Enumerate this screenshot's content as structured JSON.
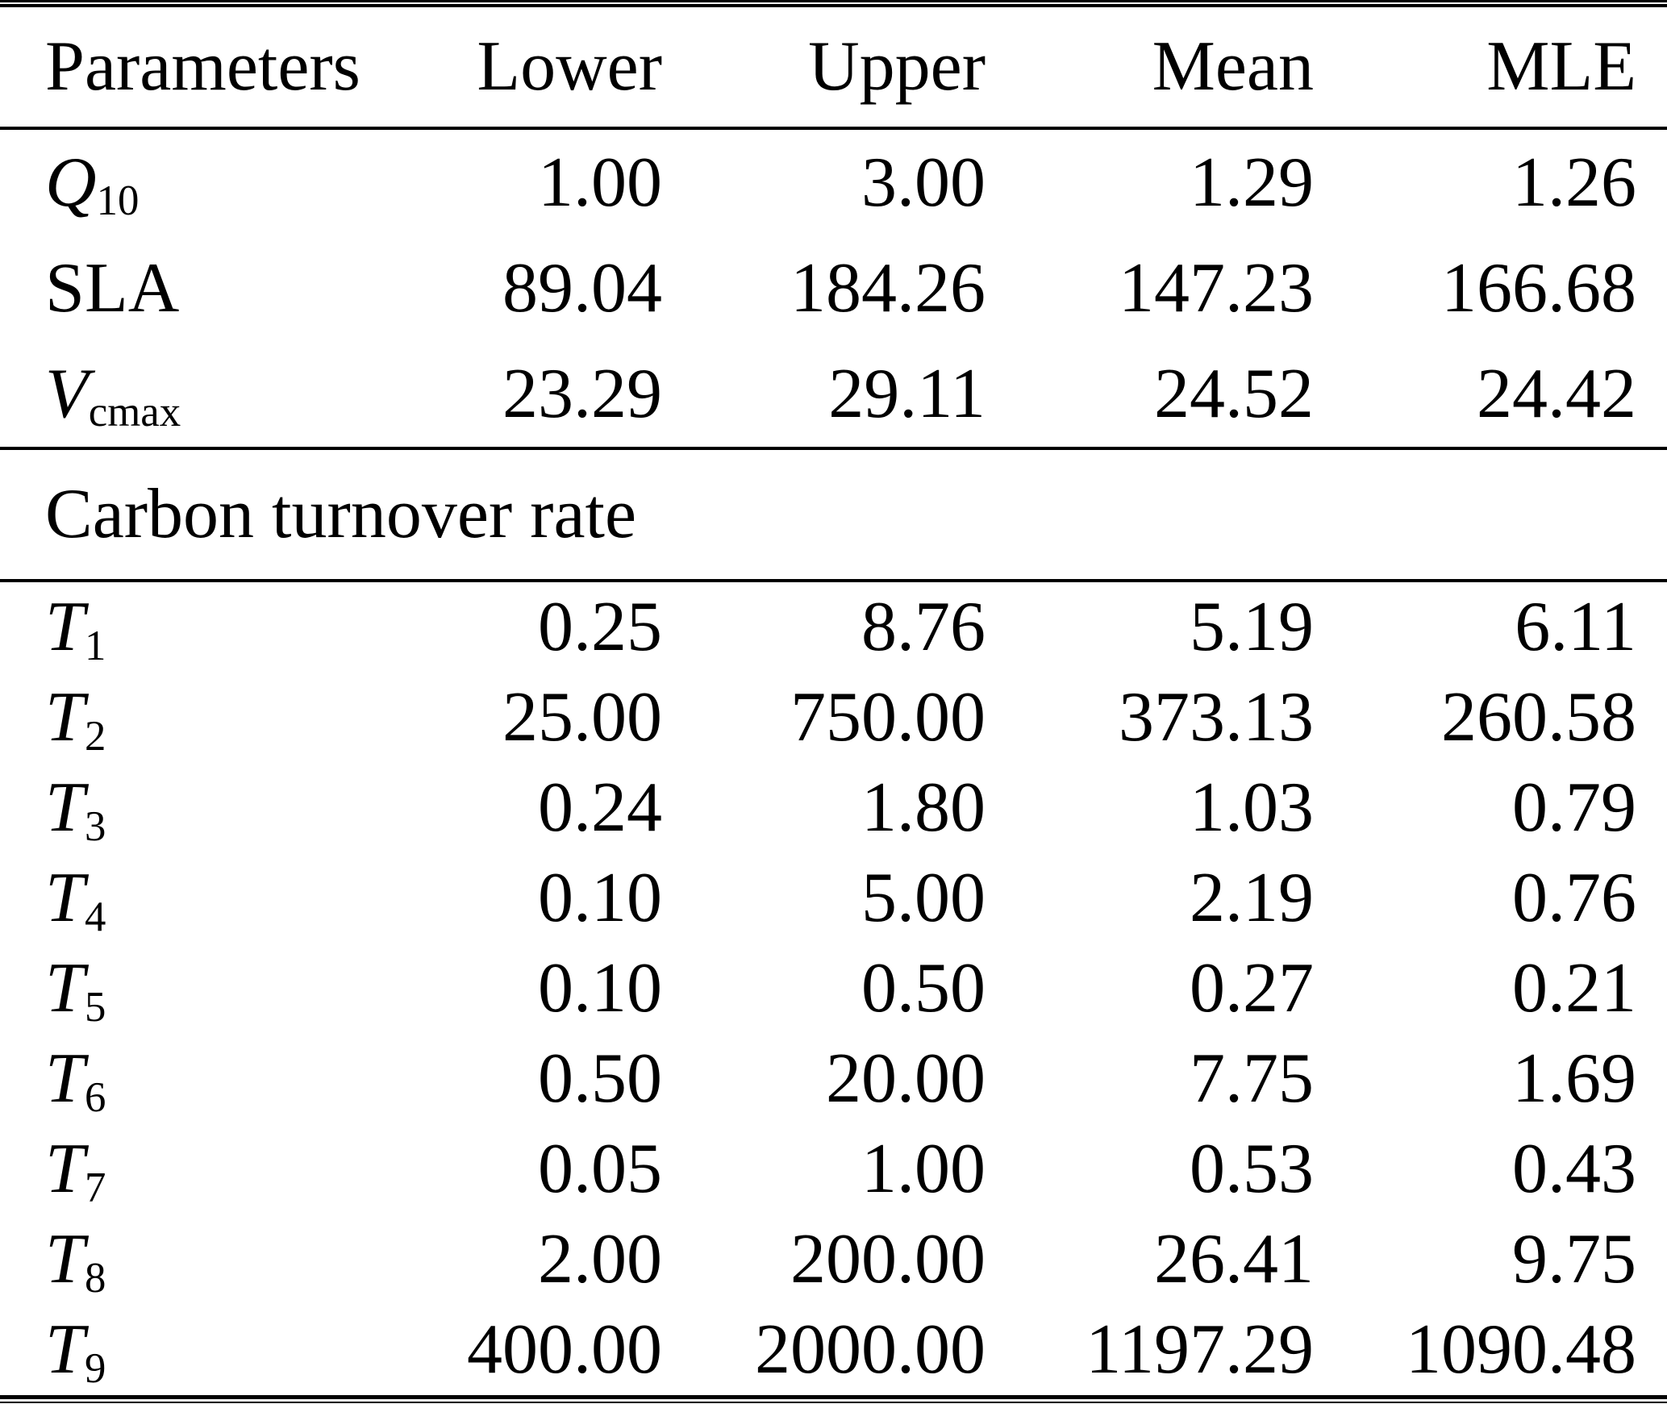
{
  "table": {
    "columns": [
      "Parameters",
      "Lower",
      "Upper",
      "Mean",
      "MLE"
    ],
    "sections": [
      {
        "rows": [
          {
            "param_base": "Q",
            "param_sub": "10",
            "lower": "1.00",
            "upper": "3.00",
            "mean": "1.29",
            "mle": "1.26"
          },
          {
            "param_base": "SLA",
            "param_sub": "",
            "lower": "89.04",
            "upper": "184.26",
            "mean": "147.23",
            "mle": "166.68"
          },
          {
            "param_base": "V",
            "param_sub": "cmax",
            "lower": "23.29",
            "upper": "29.11",
            "mean": "24.52",
            "mle": "24.42"
          }
        ]
      },
      {
        "header": "Carbon turnover rate",
        "rows": [
          {
            "param_base": "T",
            "param_sub": "1",
            "lower": "0.25",
            "upper": "8.76",
            "mean": "5.19",
            "mle": "6.11"
          },
          {
            "param_base": "T",
            "param_sub": "2",
            "lower": "25.00",
            "upper": "750.00",
            "mean": "373.13",
            "mle": "260.58"
          },
          {
            "param_base": "T",
            "param_sub": "3",
            "lower": "0.24",
            "upper": "1.80",
            "mean": "1.03",
            "mle": "0.79"
          },
          {
            "param_base": "T",
            "param_sub": "4",
            "lower": "0.10",
            "upper": "5.00",
            "mean": "2.19",
            "mle": "0.76"
          },
          {
            "param_base": "T",
            "param_sub": "5",
            "lower": "0.10",
            "upper": "0.50",
            "mean": "0.27",
            "mle": "0.21"
          },
          {
            "param_base": "T",
            "param_sub": "6",
            "lower": "0.50",
            "upper": "20.00",
            "mean": "7.75",
            "mle": "1.69"
          },
          {
            "param_base": "T",
            "param_sub": "7",
            "lower": "0.05",
            "upper": "1.00",
            "mean": "0.53",
            "mle": "0.43"
          },
          {
            "param_base": "T",
            "param_sub": "8",
            "lower": "2.00",
            "upper": "200.00",
            "mean": "26.41",
            "mle": "9.75"
          },
          {
            "param_base": "T",
            "param_sub": "9",
            "lower": "400.00",
            "upper": "2000.00",
            "mean": "1197.29",
            "mle": "1090.48"
          }
        ]
      }
    ]
  }
}
